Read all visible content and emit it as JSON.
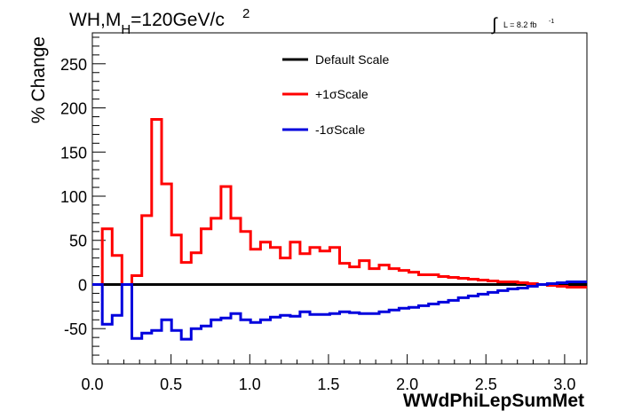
{
  "chart_data": {
    "type": "line",
    "title_main": "WH,M",
    "title_sub": "H",
    "title_mid": "=120GeV/c",
    "title_sup": "2",
    "lumi_label": "L = 8.2 fb",
    "lumi_sup": "-1",
    "lumi_symbol": "∫",
    "xlabel": "WWdPhiLepSumMet",
    "ylabel": "% Change",
    "xlim": [
      0,
      3.1416
    ],
    "ylim": [
      -90,
      285
    ],
    "x_ticks": [
      0.0,
      0.5,
      1.0,
      1.5,
      2.0,
      2.5,
      3.0
    ],
    "x_tick_labels": [
      "0.0",
      "0.5",
      "1.0",
      "1.5",
      "2.0",
      "2.5",
      "3.0"
    ],
    "y_ticks": [
      -50,
      0,
      50,
      100,
      150,
      200,
      250
    ],
    "y_tick_labels": [
      "-50",
      "0",
      "50",
      "100",
      "150",
      "200",
      "250"
    ],
    "bin_edges": [
      0.0,
      0.063,
      0.126,
      0.188,
      0.251,
      0.314,
      0.377,
      0.44,
      0.503,
      0.565,
      0.628,
      0.691,
      0.754,
      0.817,
      0.88,
      0.942,
      1.005,
      1.068,
      1.131,
      1.194,
      1.257,
      1.319,
      1.382,
      1.445,
      1.508,
      1.571,
      1.634,
      1.696,
      1.759,
      1.822,
      1.885,
      1.948,
      2.011,
      2.073,
      2.136,
      2.199,
      2.262,
      2.325,
      2.388,
      2.45,
      2.513,
      2.576,
      2.639,
      2.702,
      2.765,
      2.827,
      2.89,
      2.953,
      3.016,
      3.079,
      3.142
    ],
    "legend_position": "top-center",
    "series": [
      {
        "name": "Default Scale",
        "color": "#000000",
        "values": [
          0,
          0,
          0,
          0,
          0,
          0,
          0,
          0,
          0,
          0,
          0,
          0,
          0,
          0,
          0,
          0,
          0,
          0,
          0,
          0,
          0,
          0,
          0,
          0,
          0,
          0,
          0,
          0,
          0,
          0,
          0,
          0,
          0,
          0,
          0,
          0,
          0,
          0,
          0,
          0,
          0,
          0,
          0,
          0,
          0,
          0,
          0,
          0,
          0,
          0
        ]
      },
      {
        "name": "+1σScale",
        "color": "#ff0000",
        "values": [
          0,
          63,
          33,
          0,
          10,
          78,
          187,
          114,
          56,
          25,
          36,
          63,
          75,
          111,
          75,
          60,
          40,
          48,
          42,
          30,
          48,
          35,
          42,
          38,
          42,
          24,
          20,
          27,
          18,
          22,
          18,
          16,
          14,
          11,
          11,
          9,
          8,
          7,
          6,
          5,
          4,
          3,
          3,
          2,
          1,
          0,
          -1,
          -2,
          -3,
          -3
        ]
      },
      {
        "name": "-1σScale",
        "color": "#0000dd",
        "values": [
          0,
          -45,
          -35,
          0,
          -61,
          -55,
          -52,
          -40,
          -52,
          -62,
          -50,
          -47,
          -40,
          -38,
          -33,
          -40,
          -43,
          -40,
          -37,
          -35,
          -36,
          -31,
          -34,
          -34,
          -33,
          -31,
          -32,
          -33,
          -33,
          -31,
          -29,
          -27,
          -26,
          -24,
          -22,
          -20,
          -18,
          -15,
          -13,
          -11,
          -9,
          -7,
          -5,
          -4,
          -2,
          0,
          1,
          2,
          3,
          3
        ]
      }
    ]
  }
}
